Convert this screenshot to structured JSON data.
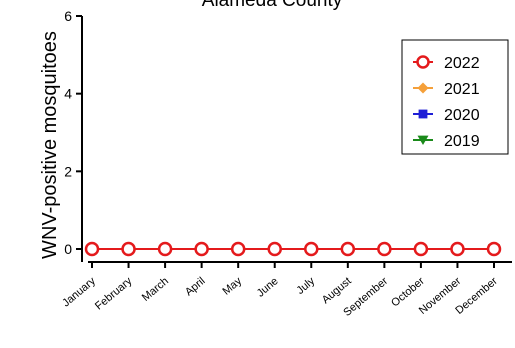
{
  "chart_data": {
    "type": "line",
    "title": "Alameda County",
    "xlabel": "",
    "ylabel": "WNV-positive mosquitoes",
    "ylim": [
      0,
      6
    ],
    "yticks": [
      0,
      2,
      4,
      6
    ],
    "grid": false,
    "legend_position": "top-right",
    "categories": [
      "January",
      "February",
      "March",
      "April",
      "May",
      "June",
      "July",
      "August",
      "September",
      "October",
      "November",
      "December"
    ],
    "series": [
      {
        "name": "2022",
        "color": "#e41a1c",
        "marker": "open-circle",
        "values": [
          0,
          0,
          0,
          0,
          0,
          0,
          0,
          0,
          0,
          0,
          0,
          0
        ]
      },
      {
        "name": "2021",
        "color": "#f5a03a",
        "marker": "diamond",
        "values": [
          null,
          null,
          null,
          null,
          null,
          null,
          null,
          null,
          null,
          null,
          null,
          0
        ]
      },
      {
        "name": "2020",
        "color": "#1f1fd6",
        "marker": "square",
        "values": [
          null,
          null,
          null,
          null,
          null,
          null,
          null,
          null,
          null,
          null,
          null,
          0
        ]
      },
      {
        "name": "2019",
        "color": "#1a8a1a",
        "marker": "triangle-down",
        "values": [
          null,
          null,
          null,
          null,
          null,
          null,
          null,
          null,
          null,
          null,
          null,
          0
        ]
      }
    ]
  }
}
